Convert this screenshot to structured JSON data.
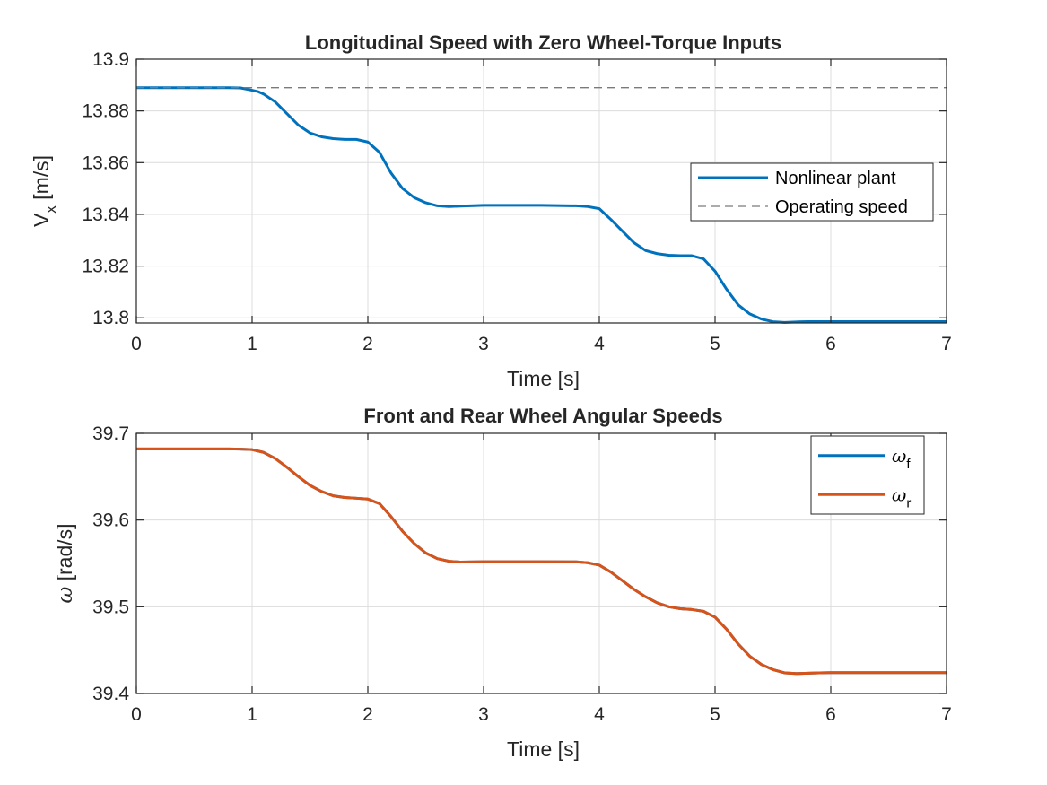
{
  "colors": {
    "blue": "#0072BD",
    "orange": "#D95319",
    "dashed": "#7a7a7a",
    "grid": "#dcdcdc",
    "axis": "#262626"
  },
  "chart_data": [
    {
      "type": "line",
      "title": "Longitudinal Speed with Zero Wheel-Torque Inputs",
      "xlabel": "Time [s]",
      "ylabel_main": "V",
      "ylabel_sub": "x",
      "ylabel_unit": " [m/s]",
      "xlim": [
        0,
        7
      ],
      "ylim": [
        13.798,
        13.9
      ],
      "xticks": [
        0,
        1,
        2,
        3,
        4,
        5,
        6,
        7
      ],
      "xtick_labels": [
        "0",
        "1",
        "2",
        "3",
        "4",
        "5",
        "6",
        "7"
      ],
      "yticks": [
        13.8,
        13.82,
        13.84,
        13.86,
        13.88,
        13.9
      ],
      "ytick_labels": [
        "13.8",
        "13.82",
        "13.84",
        "13.86",
        "13.88",
        "13.9"
      ],
      "grid": true,
      "legend_position": "right",
      "series": [
        {
          "name": "Nonlinear plant",
          "color": "#0072BD",
          "style": "solid",
          "x": [
            0,
            0.8,
            0.9,
            1.0,
            1.05,
            1.1,
            1.2,
            1.3,
            1.4,
            1.5,
            1.6,
            1.7,
            1.8,
            1.9,
            2.0,
            2.1,
            2.2,
            2.3,
            2.4,
            2.5,
            2.6,
            2.7,
            2.8,
            3.0,
            3.5,
            3.8,
            3.9,
            4.0,
            4.1,
            4.2,
            4.3,
            4.4,
            4.5,
            4.6,
            4.7,
            4.8,
            4.9,
            5.0,
            5.1,
            5.2,
            5.3,
            5.4,
            5.5,
            5.6,
            5.7,
            5.8,
            6.0,
            7.0
          ],
          "y": [
            13.889,
            13.889,
            13.8889,
            13.888,
            13.8875,
            13.8865,
            13.8835,
            13.879,
            13.8745,
            13.8715,
            13.87,
            13.8693,
            13.869,
            13.869,
            13.868,
            13.864,
            13.856,
            13.85,
            13.8465,
            13.8445,
            13.8433,
            13.843,
            13.8432,
            13.8435,
            13.8435,
            13.8433,
            13.843,
            13.8422,
            13.838,
            13.8335,
            13.829,
            13.826,
            13.8248,
            13.8242,
            13.824,
            13.824,
            13.8228,
            13.818,
            13.811,
            13.805,
            13.8015,
            13.7995,
            13.7985,
            13.7982,
            13.7984,
            13.7985,
            13.7985,
            13.7985
          ]
        },
        {
          "name": "Operating speed",
          "color": "#7a7a7a",
          "style": "dashed",
          "x": [
            0,
            7
          ],
          "y": [
            13.889,
            13.889
          ]
        }
      ]
    },
    {
      "type": "line",
      "title": "Front and Rear Wheel Angular Speeds",
      "xlabel": "Time [s]",
      "ylabel_main": "ω",
      "ylabel_sub": "",
      "ylabel_unit": " [rad/s]",
      "xlim": [
        0,
        7
      ],
      "ylim": [
        39.4,
        39.7
      ],
      "xticks": [
        0,
        1,
        2,
        3,
        4,
        5,
        6,
        7
      ],
      "xtick_labels": [
        "0",
        "1",
        "2",
        "3",
        "4",
        "5",
        "6",
        "7"
      ],
      "yticks": [
        39.4,
        39.5,
        39.6,
        39.7
      ],
      "ytick_labels": [
        "39.4",
        "39.5",
        "39.6",
        "39.7"
      ],
      "grid": true,
      "legend_position": "top-right",
      "series": [
        {
          "name": "ω",
          "sub": "f",
          "color": "#0072BD",
          "style": "solid",
          "x": [
            0,
            0.8,
            0.9,
            1.0,
            1.1,
            1.2,
            1.3,
            1.4,
            1.5,
            1.6,
            1.7,
            1.8,
            1.9,
            2.0,
            2.1,
            2.2,
            2.3,
            2.4,
            2.5,
            2.6,
            2.7,
            2.8,
            3.0,
            3.5,
            3.8,
            3.9,
            4.0,
            4.1,
            4.2,
            4.3,
            4.4,
            4.5,
            4.6,
            4.7,
            4.8,
            4.9,
            5.0,
            5.1,
            5.2,
            5.3,
            5.4,
            5.5,
            5.6,
            5.7,
            5.9,
            6.0,
            7.0
          ],
          "y": [
            39.682,
            39.682,
            39.6818,
            39.6812,
            39.678,
            39.671,
            39.661,
            39.65,
            39.64,
            39.633,
            39.628,
            39.626,
            39.6252,
            39.6242,
            39.619,
            39.604,
            39.587,
            39.573,
            39.562,
            39.5555,
            39.5525,
            39.5515,
            39.552,
            39.552,
            39.5518,
            39.5508,
            39.548,
            39.54,
            39.53,
            39.52,
            39.5115,
            39.5045,
            39.5,
            39.4978,
            39.4968,
            39.4948,
            39.488,
            39.474,
            39.457,
            39.443,
            39.4335,
            39.4275,
            39.4238,
            39.423,
            39.4238,
            39.424,
            39.424
          ]
        },
        {
          "name": "ω",
          "sub": "r",
          "color": "#D95319",
          "style": "solid",
          "x": [
            0,
            0.8,
            0.9,
            1.0,
            1.1,
            1.2,
            1.3,
            1.4,
            1.5,
            1.6,
            1.7,
            1.8,
            1.9,
            2.0,
            2.1,
            2.2,
            2.3,
            2.4,
            2.5,
            2.6,
            2.7,
            2.8,
            3.0,
            3.5,
            3.8,
            3.9,
            4.0,
            4.1,
            4.2,
            4.3,
            4.4,
            4.5,
            4.6,
            4.7,
            4.8,
            4.9,
            5.0,
            5.1,
            5.2,
            5.3,
            5.4,
            5.5,
            5.6,
            5.7,
            5.9,
            6.0,
            7.0
          ],
          "y": [
            39.682,
            39.682,
            39.6818,
            39.6812,
            39.678,
            39.671,
            39.661,
            39.65,
            39.64,
            39.633,
            39.628,
            39.626,
            39.6252,
            39.6242,
            39.619,
            39.604,
            39.587,
            39.573,
            39.562,
            39.5555,
            39.5525,
            39.5515,
            39.552,
            39.552,
            39.5518,
            39.5508,
            39.548,
            39.54,
            39.53,
            39.52,
            39.5115,
            39.5045,
            39.5,
            39.4978,
            39.4968,
            39.4948,
            39.488,
            39.474,
            39.457,
            39.443,
            39.4335,
            39.4275,
            39.4238,
            39.423,
            39.4238,
            39.424,
            39.424
          ]
        }
      ]
    }
  ]
}
